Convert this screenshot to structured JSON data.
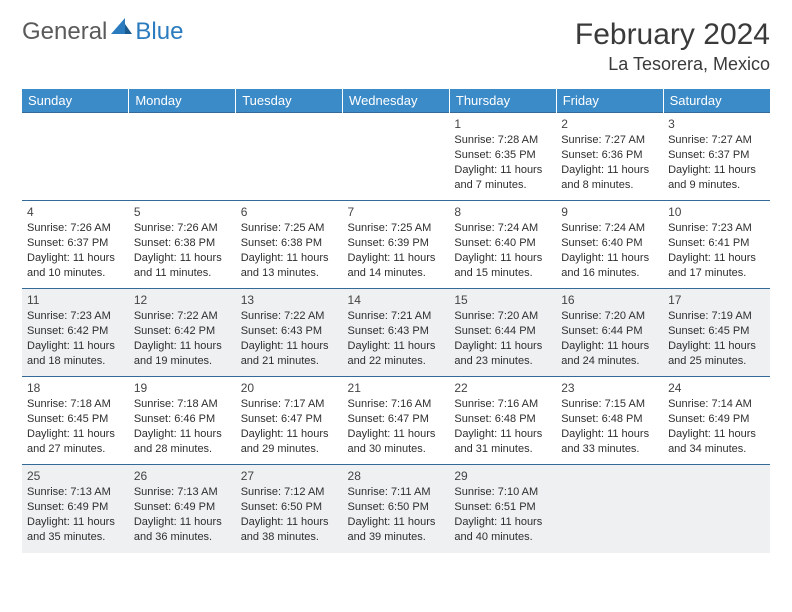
{
  "logo": {
    "general": "General",
    "blue": "Blue"
  },
  "title": "February 2024",
  "location": "La Tesorera, Mexico",
  "colors": {
    "header_bg": "#3b8bc8",
    "header_text": "#ffffff",
    "rule": "#336a99",
    "shade": "#eef0f1",
    "logo_gray": "#5a5a5a",
    "logo_blue": "#2b7bbf"
  },
  "day_headers": [
    "Sunday",
    "Monday",
    "Tuesday",
    "Wednesday",
    "Thursday",
    "Friday",
    "Saturday"
  ],
  "weeks": [
    {
      "shade": false,
      "days": [
        null,
        null,
        null,
        null,
        {
          "n": "1",
          "sr": "Sunrise: 7:28 AM",
          "ss": "Sunset: 6:35 PM",
          "d1": "Daylight: 11 hours",
          "d2": "and 7 minutes."
        },
        {
          "n": "2",
          "sr": "Sunrise: 7:27 AM",
          "ss": "Sunset: 6:36 PM",
          "d1": "Daylight: 11 hours",
          "d2": "and 8 minutes."
        },
        {
          "n": "3",
          "sr": "Sunrise: 7:27 AM",
          "ss": "Sunset: 6:37 PM",
          "d1": "Daylight: 11 hours",
          "d2": "and 9 minutes."
        }
      ]
    },
    {
      "shade": false,
      "days": [
        {
          "n": "4",
          "sr": "Sunrise: 7:26 AM",
          "ss": "Sunset: 6:37 PM",
          "d1": "Daylight: 11 hours",
          "d2": "and 10 minutes."
        },
        {
          "n": "5",
          "sr": "Sunrise: 7:26 AM",
          "ss": "Sunset: 6:38 PM",
          "d1": "Daylight: 11 hours",
          "d2": "and 11 minutes."
        },
        {
          "n": "6",
          "sr": "Sunrise: 7:25 AM",
          "ss": "Sunset: 6:38 PM",
          "d1": "Daylight: 11 hours",
          "d2": "and 13 minutes."
        },
        {
          "n": "7",
          "sr": "Sunrise: 7:25 AM",
          "ss": "Sunset: 6:39 PM",
          "d1": "Daylight: 11 hours",
          "d2": "and 14 minutes."
        },
        {
          "n": "8",
          "sr": "Sunrise: 7:24 AM",
          "ss": "Sunset: 6:40 PM",
          "d1": "Daylight: 11 hours",
          "d2": "and 15 minutes."
        },
        {
          "n": "9",
          "sr": "Sunrise: 7:24 AM",
          "ss": "Sunset: 6:40 PM",
          "d1": "Daylight: 11 hours",
          "d2": "and 16 minutes."
        },
        {
          "n": "10",
          "sr": "Sunrise: 7:23 AM",
          "ss": "Sunset: 6:41 PM",
          "d1": "Daylight: 11 hours",
          "d2": "and 17 minutes."
        }
      ]
    },
    {
      "shade": true,
      "days": [
        {
          "n": "11",
          "sr": "Sunrise: 7:23 AM",
          "ss": "Sunset: 6:42 PM",
          "d1": "Daylight: 11 hours",
          "d2": "and 18 minutes."
        },
        {
          "n": "12",
          "sr": "Sunrise: 7:22 AM",
          "ss": "Sunset: 6:42 PM",
          "d1": "Daylight: 11 hours",
          "d2": "and 19 minutes."
        },
        {
          "n": "13",
          "sr": "Sunrise: 7:22 AM",
          "ss": "Sunset: 6:43 PM",
          "d1": "Daylight: 11 hours",
          "d2": "and 21 minutes."
        },
        {
          "n": "14",
          "sr": "Sunrise: 7:21 AM",
          "ss": "Sunset: 6:43 PM",
          "d1": "Daylight: 11 hours",
          "d2": "and 22 minutes."
        },
        {
          "n": "15",
          "sr": "Sunrise: 7:20 AM",
          "ss": "Sunset: 6:44 PM",
          "d1": "Daylight: 11 hours",
          "d2": "and 23 minutes."
        },
        {
          "n": "16",
          "sr": "Sunrise: 7:20 AM",
          "ss": "Sunset: 6:44 PM",
          "d1": "Daylight: 11 hours",
          "d2": "and 24 minutes."
        },
        {
          "n": "17",
          "sr": "Sunrise: 7:19 AM",
          "ss": "Sunset: 6:45 PM",
          "d1": "Daylight: 11 hours",
          "d2": "and 25 minutes."
        }
      ]
    },
    {
      "shade": false,
      "days": [
        {
          "n": "18",
          "sr": "Sunrise: 7:18 AM",
          "ss": "Sunset: 6:45 PM",
          "d1": "Daylight: 11 hours",
          "d2": "and 27 minutes."
        },
        {
          "n": "19",
          "sr": "Sunrise: 7:18 AM",
          "ss": "Sunset: 6:46 PM",
          "d1": "Daylight: 11 hours",
          "d2": "and 28 minutes."
        },
        {
          "n": "20",
          "sr": "Sunrise: 7:17 AM",
          "ss": "Sunset: 6:47 PM",
          "d1": "Daylight: 11 hours",
          "d2": "and 29 minutes."
        },
        {
          "n": "21",
          "sr": "Sunrise: 7:16 AM",
          "ss": "Sunset: 6:47 PM",
          "d1": "Daylight: 11 hours",
          "d2": "and 30 minutes."
        },
        {
          "n": "22",
          "sr": "Sunrise: 7:16 AM",
          "ss": "Sunset: 6:48 PM",
          "d1": "Daylight: 11 hours",
          "d2": "and 31 minutes."
        },
        {
          "n": "23",
          "sr": "Sunrise: 7:15 AM",
          "ss": "Sunset: 6:48 PM",
          "d1": "Daylight: 11 hours",
          "d2": "and 33 minutes."
        },
        {
          "n": "24",
          "sr": "Sunrise: 7:14 AM",
          "ss": "Sunset: 6:49 PM",
          "d1": "Daylight: 11 hours",
          "d2": "and 34 minutes."
        }
      ]
    },
    {
      "shade": true,
      "days": [
        {
          "n": "25",
          "sr": "Sunrise: 7:13 AM",
          "ss": "Sunset: 6:49 PM",
          "d1": "Daylight: 11 hours",
          "d2": "and 35 minutes."
        },
        {
          "n": "26",
          "sr": "Sunrise: 7:13 AM",
          "ss": "Sunset: 6:49 PM",
          "d1": "Daylight: 11 hours",
          "d2": "and 36 minutes."
        },
        {
          "n": "27",
          "sr": "Sunrise: 7:12 AM",
          "ss": "Sunset: 6:50 PM",
          "d1": "Daylight: 11 hours",
          "d2": "and 38 minutes."
        },
        {
          "n": "28",
          "sr": "Sunrise: 7:11 AM",
          "ss": "Sunset: 6:50 PM",
          "d1": "Daylight: 11 hours",
          "d2": "and 39 minutes."
        },
        {
          "n": "29",
          "sr": "Sunrise: 7:10 AM",
          "ss": "Sunset: 6:51 PM",
          "d1": "Daylight: 11 hours",
          "d2": "and 40 minutes."
        },
        null,
        null
      ]
    }
  ]
}
